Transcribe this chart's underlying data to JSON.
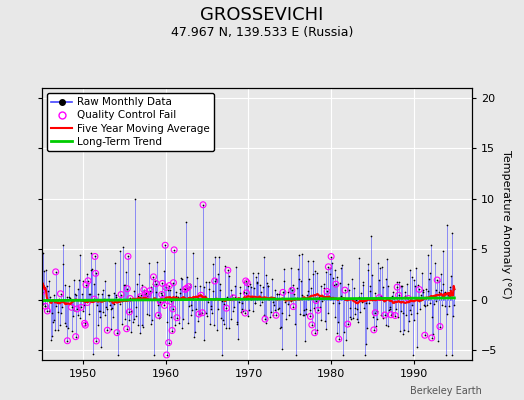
{
  "title": "GROSSEVICHI",
  "subtitle": "47.967 N, 139.533 E (Russia)",
  "ylabel": "Temperature Anomaly (°C)",
  "xlabel_bottom": "Berkeley Earth",
  "xlim": [
    1945,
    1997
  ],
  "ylim": [
    -6,
    21
  ],
  "yticks": [
    -5,
    0,
    5,
    10,
    15,
    20
  ],
  "xticks": [
    1950,
    1960,
    1970,
    1980,
    1990
  ],
  "seed": 42,
  "n_years": 50,
  "start_year": 1945,
  "line_color": "#4444ff",
  "marker_color": "#000000",
  "qc_color": "#ff00ff",
  "moving_avg_color": "#ff0000",
  "trend_color": "#00cc00",
  "background_color": "#e8e8e8",
  "grid_color": "#d0d0d0",
  "title_fontsize": 13,
  "subtitle_fontsize": 9,
  "label_fontsize": 8,
  "tick_fontsize": 8,
  "legend_fontsize": 7.5
}
